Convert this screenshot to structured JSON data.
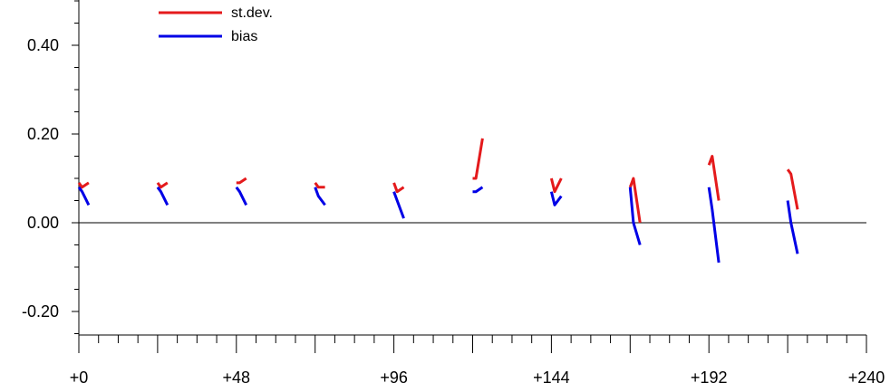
{
  "chart_data": {
    "type": "line",
    "title": "",
    "xlabel": "",
    "ylabel": "",
    "xlim": [
      0,
      240
    ],
    "ylim": [
      -0.25,
      0.5
    ],
    "x_ticks": [
      0,
      48,
      96,
      144,
      192,
      240
    ],
    "x_tick_labels": [
      "+0",
      "+48",
      "+96",
      "+144",
      "+192",
      "+240"
    ],
    "y_ticks": [
      -0.2,
      0.0,
      0.2,
      0.4
    ],
    "y_tick_labels": [
      "-0.20",
      "0.00",
      "0.20",
      "0.40"
    ],
    "zero_line": true,
    "grid": false,
    "legend_position": "top-left",
    "groups_x": [
      0,
      24,
      48,
      72,
      96,
      120,
      144,
      168,
      192,
      216
    ],
    "series": [
      {
        "name": "st.dev.",
        "color": "#e41a1c",
        "segments": [
          [
            0.09,
            0.08,
            0.09
          ],
          [
            0.09,
            0.08,
            0.09
          ],
          [
            0.09,
            0.09,
            0.1
          ],
          [
            0.09,
            0.08,
            0.08
          ],
          [
            0.09,
            0.07,
            0.08
          ],
          [
            0.1,
            0.1,
            0.19
          ],
          [
            0.1,
            0.07,
            0.1
          ],
          [
            0.08,
            0.1,
            0.0
          ],
          [
            0.13,
            0.15,
            0.05
          ],
          [
            0.12,
            0.11,
            0.03
          ]
        ]
      },
      {
        "name": "bias",
        "color": "#0000e6",
        "segments": [
          [
            0.08,
            0.07,
            0.04
          ],
          [
            0.08,
            0.07,
            0.04
          ],
          [
            0.08,
            0.07,
            0.04
          ],
          [
            0.08,
            0.06,
            0.04
          ],
          [
            0.07,
            0.05,
            0.01
          ],
          [
            0.07,
            0.07,
            0.08
          ],
          [
            0.07,
            0.04,
            0.06
          ],
          [
            0.08,
            0.0,
            -0.05
          ],
          [
            0.08,
            0.03,
            -0.09
          ],
          [
            0.05,
            0.0,
            -0.07
          ]
        ]
      }
    ]
  }
}
